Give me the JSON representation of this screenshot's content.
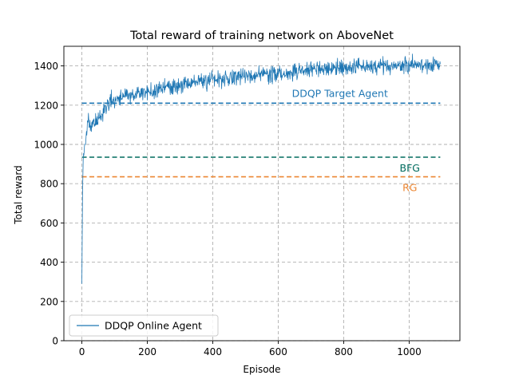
{
  "chart_data": {
    "type": "line",
    "title": "Total reward of training network on AboveNet",
    "xlabel": "Episode",
    "ylabel": "Total reward",
    "xlim": [
      -55,
      1155
    ],
    "ylim": [
      0,
      1500
    ],
    "xticks": [
      0,
      200,
      400,
      600,
      800,
      1000
    ],
    "yticks": [
      0,
      200,
      400,
      600,
      800,
      1000,
      1200,
      1400
    ],
    "grid": true,
    "legend_position": "lower-left",
    "series": [
      {
        "name": "DDQP Online Agent",
        "color": "#1f77b4",
        "x": [
          0,
          2,
          4,
          6,
          10,
          15,
          20,
          25,
          30,
          40,
          50,
          60,
          70,
          80,
          90,
          100,
          120,
          150,
          200,
          250,
          300,
          350,
          400,
          450,
          500,
          550,
          600,
          650,
          700,
          750,
          800,
          850,
          900,
          950,
          1000,
          1050,
          1095
        ],
        "y": [
          290,
          750,
          920,
          960,
          1000,
          1070,
          1120,
          1090,
          1100,
          1110,
          1130,
          1150,
          1180,
          1210,
          1220,
          1230,
          1240,
          1250,
          1265,
          1290,
          1300,
          1320,
          1330,
          1340,
          1345,
          1355,
          1360,
          1370,
          1380,
          1385,
          1390,
          1395,
          1400,
          1400,
          1405,
          1410,
          1400
        ]
      }
    ],
    "reference_lines": [
      {
        "name": "DDQP Target Agent",
        "value": 1210,
        "color": "#1f77b4",
        "x_range": [
          0,
          1095
        ]
      },
      {
        "name": "BFG",
        "value": 935,
        "color": "#006b5e",
        "x_range": [
          0,
          1095
        ]
      },
      {
        "name": "RG",
        "value": 835,
        "color": "#ec8632",
        "x_range": [
          0,
          1095
        ]
      }
    ]
  }
}
